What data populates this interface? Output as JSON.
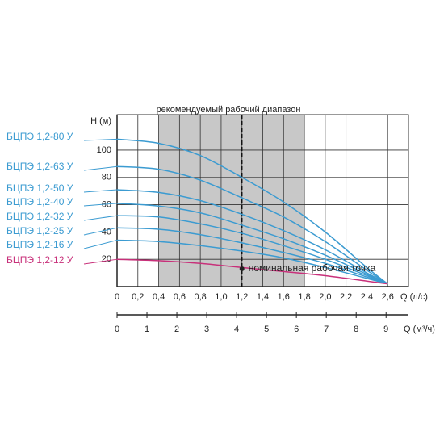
{
  "chart_data": {
    "type": "line",
    "title": "рекомендуемый рабочий диапазон",
    "y_label": "H (м)",
    "x_label": "Q (л/с)",
    "x2_label": "Q (м³/ч)",
    "x": [
      0,
      0.4,
      0.8,
      1.2,
      1.6,
      2.0,
      2.4,
      2.6
    ],
    "xlim": [
      0,
      2.8
    ],
    "xticks": [
      0,
      {
        "value": 0.2,
        "label": "0,2"
      },
      {
        "value": 0.4,
        "label": "0,4"
      },
      {
        "value": 0.6,
        "label": "0,6"
      },
      {
        "value": 0.8,
        "label": "0,8"
      },
      {
        "value": 1.0,
        "label": "1,0"
      },
      {
        "value": 1.2,
        "label": "1,2"
      },
      {
        "value": 1.4,
        "label": "1,4"
      },
      {
        "value": 1.6,
        "label": "1,6"
      },
      {
        "value": 1.8,
        "label": "1,8"
      },
      {
        "value": 2.0,
        "label": "2,0"
      },
      {
        "value": 2.2,
        "label": "2,2"
      },
      {
        "value": 2.4,
        "label": "2,4"
      },
      {
        "value": 2.6,
        "label": "2,6"
      }
    ],
    "x2lim": [
      0,
      9.75
    ],
    "x2ticks": [
      0,
      1,
      2,
      3,
      4,
      5,
      6,
      7,
      8,
      9
    ],
    "ylim": [
      0,
      126
    ],
    "yticks": [
      20,
      40,
      60,
      80,
      100
    ],
    "grid": true,
    "range": {
      "from": 0.4,
      "to": 1.8,
      "color": "#c8c8c8"
    },
    "nominal_point": {
      "x": 1.2,
      "y": 13,
      "label": "номинальная рабочая точка"
    },
    "series": [
      {
        "name": "БЦПЭ 1,2-80 У",
        "color": "#3b9bd1",
        "values": [
          108,
          105,
          96,
          80,
          62,
          40,
          14,
          2
        ]
      },
      {
        "name": "БЦПЭ 1,2-63 У",
        "color": "#3b9bd1",
        "values": [
          88,
          86,
          78,
          65,
          51,
          33,
          12,
          2
        ]
      },
      {
        "name": "БЦПЭ 1,2-50 У",
        "color": "#3b9bd1",
        "values": [
          71,
          69,
          63,
          53,
          41,
          27,
          10,
          2
        ]
      },
      {
        "name": "БЦПЭ 1,2-40 У",
        "color": "#3b9bd1",
        "values": [
          61,
          59,
          54,
          45,
          35,
          23,
          9,
          2
        ]
      },
      {
        "name": "БЦПЭ 1,2-32 У",
        "color": "#3b9bd1",
        "values": [
          52,
          51,
          46,
          39,
          30,
          20,
          8,
          2
        ]
      },
      {
        "name": "БЦПЭ 1,2-25 У",
        "color": "#3b9bd1",
        "values": [
          43,
          42,
          38,
          32,
          25,
          17,
          7,
          2
        ]
      },
      {
        "name": "БЦПЭ 1,2-16 У",
        "color": "#3b9bd1",
        "values": [
          34,
          33,
          30,
          26,
          21,
          14,
          6,
          2
        ]
      },
      {
        "name": "БЦПЭ 1,2-12 У",
        "color": "#c8307a",
        "values": [
          20,
          19,
          17,
          14,
          11,
          8,
          4,
          2
        ]
      }
    ]
  }
}
